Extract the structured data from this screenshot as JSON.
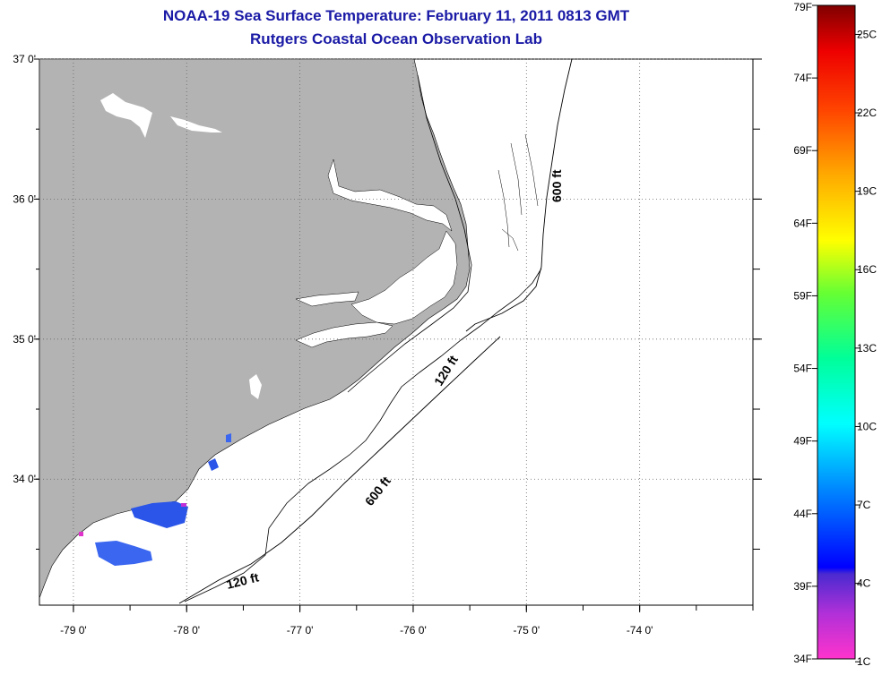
{
  "header": {
    "title": "NOAA-19 Sea Surface Temperature:  February 11, 2011 0813 GMT",
    "subtitle": "Rutgers Coastal Ocean Observation Lab"
  },
  "map": {
    "lon_range": [
      -79.3,
      -73.0
    ],
    "lat_range": [
      33.1,
      37.0
    ],
    "lat_labels": [
      "37 0'",
      "36 0'",
      "35 0'",
      "34 0'"
    ],
    "lat_values": [
      37,
      36,
      35,
      34
    ],
    "lon_labels": [
      "-79 0'",
      "-78 0'",
      "-77 0'",
      "-76 0'",
      "-75 0'",
      "-74 0'"
    ],
    "lon_values": [
      -79,
      -78,
      -77,
      -76,
      -75,
      -74
    ],
    "isobaths": [
      {
        "label": "600 ft"
      },
      {
        "label": "120 ft"
      },
      {
        "label": "600 ft"
      },
      {
        "label": "120 ft"
      }
    ],
    "colors": {
      "land": "#b3b3b3",
      "ocean": "#ffffff",
      "contour": "#000000"
    }
  },
  "colorbar": {
    "fahrenheit": [
      "79F",
      "74F",
      "69F",
      "64F",
      "59F",
      "54F",
      "49F",
      "44F",
      "39F",
      "34F"
    ],
    "celsius": [
      "25C",
      "22C",
      "19C",
      "16C",
      "13C",
      "10C",
      "7C",
      "4C",
      "1C"
    ],
    "range_f": [
      34,
      79
    ],
    "celsius_values": [
      25,
      22,
      19,
      16,
      13,
      10,
      7,
      4,
      1
    ]
  }
}
